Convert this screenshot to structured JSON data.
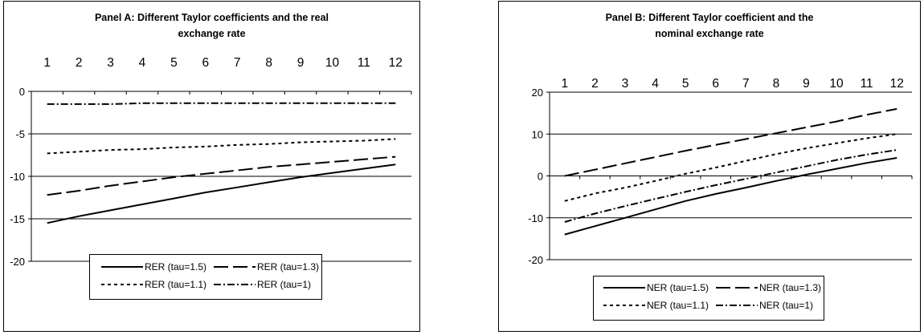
{
  "chart_data": [
    {
      "type": "line",
      "title_lines": [
        "Panel A: Different Taylor coefficients and the real",
        "exchange rate"
      ],
      "x": [
        1,
        2,
        3,
        4,
        5,
        6,
        7,
        8,
        9,
        10,
        11,
        12
      ],
      "x_ticks": [
        "1",
        "2",
        "3",
        "4",
        "5",
        "6",
        "7",
        "8",
        "9",
        "10",
        "11",
        "12"
      ],
      "x_axis_position": "top",
      "ylim": [
        -20,
        0
      ],
      "y_ticks": [
        "0",
        "-5",
        "-10",
        "-15",
        "-20"
      ],
      "grid": true,
      "legend_position": "bottom",
      "series": [
        {
          "name": "RER (tau=1.5)",
          "dash": "solid",
          "values": [
            -15.5,
            -14.7,
            -14.0,
            -13.3,
            -12.6,
            -11.9,
            -11.3,
            -10.7,
            -10.1,
            -9.6,
            -9.1,
            -8.6
          ]
        },
        {
          "name": "RER (tau=1.3)",
          "dash": "long-dash",
          "values": [
            -12.2,
            -11.7,
            -11.1,
            -10.6,
            -10.1,
            -9.7,
            -9.3,
            -8.9,
            -8.6,
            -8.3,
            -8.0,
            -7.7
          ]
        },
        {
          "name": "RER (tau=1.1)",
          "dash": "dotted",
          "values": [
            -7.3,
            -7.1,
            -6.9,
            -6.8,
            -6.6,
            -6.5,
            -6.3,
            -6.2,
            -6.0,
            -5.9,
            -5.8,
            -5.6
          ]
        },
        {
          "name": "RER (tau=1)",
          "dash": "dash-dot",
          "values": [
            -1.5,
            -1.5,
            -1.5,
            -1.4,
            -1.4,
            -1.4,
            -1.4,
            -1.4,
            -1.4,
            -1.4,
            -1.4,
            -1.4
          ]
        }
      ]
    },
    {
      "type": "line",
      "title_lines": [
        "Panel B: Different Taylor coefficient and the",
        "nominal exchange rate"
      ],
      "x": [
        1,
        2,
        3,
        4,
        5,
        6,
        7,
        8,
        9,
        10,
        11,
        12
      ],
      "x_ticks": [
        "1",
        "2",
        "3",
        "4",
        "5",
        "6",
        "7",
        "8",
        "9",
        "10",
        "11",
        "12"
      ],
      "x_axis_position": "top",
      "ylim": [
        -20,
        20
      ],
      "y_ticks": [
        "20",
        "10",
        "0",
        "-10",
        "-20"
      ],
      "grid": true,
      "legend_position": "bottom",
      "series": [
        {
          "name": "NER (tau=1.5)",
          "dash": "solid",
          "values": [
            -14.0,
            -12.0,
            -10.0,
            -8.0,
            -6.0,
            -4.3,
            -2.8,
            -1.2,
            0.3,
            1.7,
            3.1,
            4.3
          ]
        },
        {
          "name": "NER (tau=1.3)",
          "dash": "long-dash",
          "values": [
            0.0,
            1.5,
            3.0,
            4.5,
            6.0,
            7.4,
            8.8,
            10.2,
            11.6,
            13.0,
            14.6,
            16.0
          ]
        },
        {
          "name": "NER (tau=1.1)",
          "dash": "dotted",
          "values": [
            -6.0,
            -4.2,
            -2.8,
            -1.2,
            0.5,
            2.0,
            3.6,
            5.2,
            6.6,
            7.8,
            9.0,
            10.0
          ]
        },
        {
          "name": "NER (tau=1)",
          "dash": "dash-dot",
          "values": [
            -11.0,
            -9.0,
            -7.2,
            -5.5,
            -3.8,
            -2.2,
            -0.7,
            0.8,
            2.3,
            3.8,
            5.1,
            6.2
          ]
        }
      ]
    }
  ]
}
